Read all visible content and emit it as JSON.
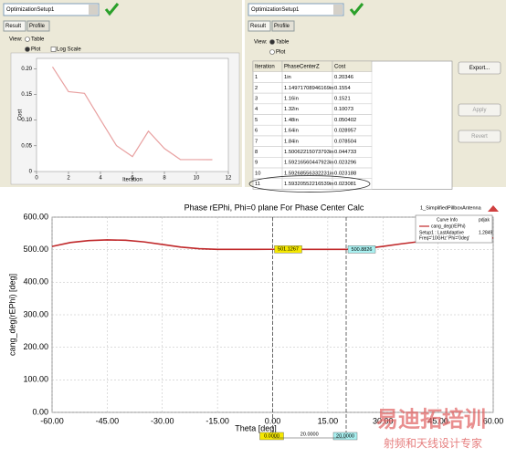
{
  "left_panel": {
    "dropdown": "OptimizationSetup1",
    "tabs": [
      "Result",
      "Profile"
    ],
    "view_label": "View:",
    "options": [
      "Table",
      "Plot",
      "Log Scale"
    ]
  },
  "cost_chart": {
    "type": "line",
    "xlabel": "Iteration",
    "ylabel": "Cost",
    "color": "#e8a0a0",
    "x": [
      1,
      2,
      3,
      4,
      5,
      6,
      7,
      8,
      9,
      10,
      11
    ],
    "values": [
      0.20346,
      0.1554,
      0.1521,
      0.10073,
      0.050402,
      0.028957,
      0.078504,
      0.044733,
      0.023296,
      0.023188,
      0.023081
    ],
    "xlim": [
      0,
      12
    ],
    "xticks": [
      0,
      2,
      4,
      6,
      8,
      10,
      12
    ],
    "ylim": [
      0,
      0.22
    ],
    "yticks": [
      0,
      {
        "value": 0.05,
        "label": "0.05"
      },
      {
        "value": 0.1,
        "label": "0.10"
      },
      {
        "value": 0.15,
        "label": "0.15"
      },
      {
        "value": 0.2,
        "label": "0.20"
      }
    ]
  },
  "right_panel": {
    "dropdown": "OptimizationSetup1",
    "tabs": [
      "Result",
      "Profile"
    ],
    "view_label": "View:",
    "options": [
      "Table",
      "Plot"
    ],
    "buttons": [
      "Export...",
      "Apply",
      "Revert"
    ]
  },
  "table": {
    "headers": [
      "Iteration",
      "PhaseCenterZ",
      "Cost"
    ],
    "rows": [
      [
        "1",
        "1in",
        "0.20346"
      ],
      [
        "2",
        "1.14971708946169in",
        "0.1554"
      ],
      [
        "3",
        "1.16in",
        "0.1521"
      ],
      [
        "4",
        "1.32in",
        "0.10073"
      ],
      [
        "5",
        "1.48in",
        "0.050402"
      ],
      [
        "6",
        "1.64in",
        "0.028957"
      ],
      [
        "7",
        "1.84in",
        "0.078504"
      ],
      [
        "8",
        "1.50062215073793in",
        "0.044733"
      ],
      [
        "9",
        "1.59216560447923in",
        "0.023296"
      ],
      [
        "10",
        "1.59268556332231in",
        "0.023188"
      ],
      [
        "11",
        "1.59320552216539in",
        "0.023081"
      ]
    ]
  },
  "phase_chart": {
    "type": "line",
    "title": "Phase rEPhi, Phi=0 plane For Phase Center Calc",
    "project": "1_SimplifiedPillboxAntenna",
    "xlabel": "Theta [deg]",
    "ylabel": "cang_deg(rEPhi) [deg]",
    "color": "#c0282a",
    "x": [
      -60,
      -55,
      -50,
      -45,
      -40,
      -35,
      -30,
      -25,
      -20,
      -15,
      -10,
      -5,
      0,
      5,
      10,
      15,
      20,
      25,
      30,
      35,
      40,
      45,
      50,
      55,
      60
    ],
    "values": [
      510,
      522,
      528,
      530,
      529,
      524,
      516,
      508,
      503,
      501,
      501,
      501,
      501.1267,
      501,
      501,
      501,
      500.8826,
      503,
      510,
      518,
      525,
      530,
      533,
      535,
      536
    ],
    "xlim": [
      -60,
      60
    ],
    "xticks": [
      {
        "value": -60,
        "label": "-60.00"
      },
      {
        "value": -45,
        "label": "-45.00"
      },
      {
        "value": -30,
        "label": "-30.00"
      },
      {
        "value": -15,
        "label": "-15.00"
      },
      {
        "value": 0,
        "label": "0.00"
      },
      {
        "value": 15,
        "label": "15.00"
      },
      {
        "value": 30,
        "label": "30.00"
      },
      {
        "value": 45,
        "label": "45.00"
      },
      {
        "value": 60,
        "label": "60.00"
      }
    ],
    "ylim": [
      0,
      600
    ],
    "yticks": [
      {
        "value": 0,
        "label": "0.00"
      },
      {
        "value": 100,
        "label": "100.00"
      },
      {
        "value": 200,
        "label": "200.00"
      },
      {
        "value": 300,
        "label": "300.00"
      },
      {
        "value": 400,
        "label": "400.00"
      },
      {
        "value": 500,
        "label": "500.00"
      },
      {
        "value": 600,
        "label": "600.00"
      }
    ],
    "grid": true,
    "markers": [
      {
        "x": {
          "value": 0,
          "label": "0.0000"
        },
        "index": 12
      },
      {
        "x": {
          "value": 20,
          "label": "20.0000"
        },
        "index": 16
      }
    ],
    "marker_delta": {
      "value": 20,
      "label": "20.0000"
    },
    "legend": {
      "header": "Curve Info",
      "tag": "pdjak",
      "curve": "cang_deg(rEPhi)",
      "setup": "Setup1 : LastAdaptive",
      "condition": "Freq='10GHz' Phi='0deg'",
      "value": "1.2849"
    }
  },
  "watermark": {
    "brand": "易迪拓培训",
    "slogan": "射频和天线设计专家"
  }
}
